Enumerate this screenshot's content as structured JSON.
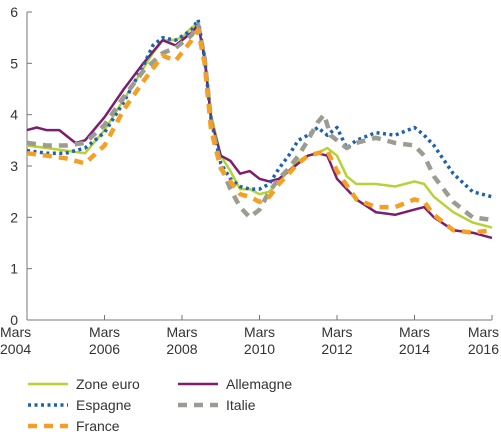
{
  "chart_data": {
    "type": "line",
    "title": "",
    "xlabel": "",
    "ylabel": "",
    "x_range": [
      "2004-03",
      "2016-03"
    ],
    "ylim": [
      0,
      6
    ],
    "y_ticks": [
      "0",
      "1",
      "2",
      "3",
      "4",
      "5",
      "6"
    ],
    "x_ticks": [
      {
        "month": "Mars",
        "year": "2004",
        "date": "2004-03"
      },
      {
        "month": "Mars",
        "year": "2006",
        "date": "2006-03"
      },
      {
        "month": "Mars",
        "year": "2008",
        "date": "2008-03"
      },
      {
        "month": "Mars",
        "year": "2010",
        "date": "2010-03"
      },
      {
        "month": "Mars",
        "year": "2012",
        "date": "2012-03"
      },
      {
        "month": "Mars",
        "year": "2014",
        "date": "2014-03"
      },
      {
        "month": "Mars",
        "year": "2016",
        "date": "2016-03"
      }
    ],
    "grid": "none",
    "legend_position": "bottom",
    "series": [
      {
        "name": "Zone euro",
        "color": "#b5d334",
        "style": "solid",
        "points": [
          [
            "2004-03",
            3.4
          ],
          [
            "2004-09",
            3.35
          ],
          [
            "2005-03",
            3.3
          ],
          [
            "2005-09",
            3.25
          ],
          [
            "2006-03",
            3.7
          ],
          [
            "2006-09",
            4.3
          ],
          [
            "2007-03",
            4.9
          ],
          [
            "2007-06",
            5.2
          ],
          [
            "2007-09",
            5.45
          ],
          [
            "2007-12",
            5.45
          ],
          [
            "2008-03",
            5.5
          ],
          [
            "2008-06",
            5.7
          ],
          [
            "2008-08",
            5.75
          ],
          [
            "2008-10",
            5.2
          ],
          [
            "2008-12",
            4.0
          ],
          [
            "2009-03",
            3.2
          ],
          [
            "2009-06",
            2.9
          ],
          [
            "2009-09",
            2.55
          ],
          [
            "2009-12",
            2.55
          ],
          [
            "2010-03",
            2.45
          ],
          [
            "2010-06",
            2.5
          ],
          [
            "2010-09",
            2.7
          ],
          [
            "2010-12",
            2.9
          ],
          [
            "2011-03",
            3.1
          ],
          [
            "2011-06",
            3.2
          ],
          [
            "2011-09",
            3.25
          ],
          [
            "2011-12",
            3.35
          ],
          [
            "2012-03",
            3.2
          ],
          [
            "2012-06",
            2.8
          ],
          [
            "2012-09",
            2.65
          ],
          [
            "2013-03",
            2.65
          ],
          [
            "2013-09",
            2.6
          ],
          [
            "2014-03",
            2.7
          ],
          [
            "2014-06",
            2.65
          ],
          [
            "2014-09",
            2.4
          ],
          [
            "2015-03",
            2.1
          ],
          [
            "2015-09",
            1.9
          ],
          [
            "2016-03",
            1.8
          ]
        ]
      },
      {
        "name": "Allemagne",
        "color": "#7b1e6e",
        "style": "solid",
        "points": [
          [
            "2004-03",
            3.7
          ],
          [
            "2004-06",
            3.75
          ],
          [
            "2004-09",
            3.7
          ],
          [
            "2005-01",
            3.7
          ],
          [
            "2005-06",
            3.45
          ],
          [
            "2005-09",
            3.5
          ],
          [
            "2006-03",
            3.95
          ],
          [
            "2006-09",
            4.5
          ],
          [
            "2007-03",
            5.0
          ],
          [
            "2007-09",
            5.45
          ],
          [
            "2008-01",
            5.35
          ],
          [
            "2008-06",
            5.6
          ],
          [
            "2008-08",
            5.75
          ],
          [
            "2008-10",
            5.1
          ],
          [
            "2008-12",
            3.9
          ],
          [
            "2009-03",
            3.2
          ],
          [
            "2009-06",
            3.1
          ],
          [
            "2009-09",
            2.85
          ],
          [
            "2009-12",
            2.9
          ],
          [
            "2010-03",
            2.75
          ],
          [
            "2010-06",
            2.7
          ],
          [
            "2010-09",
            2.75
          ],
          [
            "2010-12",
            2.9
          ],
          [
            "2011-03",
            3.05
          ],
          [
            "2011-06",
            3.2
          ],
          [
            "2011-09",
            3.25
          ],
          [
            "2011-12",
            3.2
          ],
          [
            "2012-03",
            2.75
          ],
          [
            "2012-09",
            2.35
          ],
          [
            "2013-03",
            2.1
          ],
          [
            "2013-09",
            2.05
          ],
          [
            "2014-03",
            2.15
          ],
          [
            "2014-06",
            2.2
          ],
          [
            "2014-09",
            2.0
          ],
          [
            "2015-03",
            1.75
          ],
          [
            "2015-09",
            1.7
          ],
          [
            "2016-03",
            1.6
          ]
        ]
      },
      {
        "name": "Espagne",
        "color": "#1e62ad",
        "style": "dotted",
        "points": [
          [
            "2004-03",
            3.3
          ],
          [
            "2004-09",
            3.25
          ],
          [
            "2005-03",
            3.25
          ],
          [
            "2005-09",
            3.35
          ],
          [
            "2006-03",
            3.65
          ],
          [
            "2006-09",
            4.25
          ],
          [
            "2007-03",
            4.95
          ],
          [
            "2007-06",
            5.35
          ],
          [
            "2007-09",
            5.5
          ],
          [
            "2008-01",
            5.45
          ],
          [
            "2008-06",
            5.65
          ],
          [
            "2008-08",
            5.85
          ],
          [
            "2008-10",
            5.1
          ],
          [
            "2008-12",
            3.9
          ],
          [
            "2009-03",
            3.05
          ],
          [
            "2009-06",
            2.75
          ],
          [
            "2009-09",
            2.6
          ],
          [
            "2009-12",
            2.55
          ],
          [
            "2010-03",
            2.55
          ],
          [
            "2010-06",
            2.65
          ],
          [
            "2010-09",
            2.95
          ],
          [
            "2010-12",
            3.2
          ],
          [
            "2011-03",
            3.5
          ],
          [
            "2011-06",
            3.6
          ],
          [
            "2011-09",
            3.75
          ],
          [
            "2011-12",
            3.6
          ],
          [
            "2012-03",
            3.75
          ],
          [
            "2012-06",
            3.35
          ],
          [
            "2012-09",
            3.5
          ],
          [
            "2013-03",
            3.65
          ],
          [
            "2013-09",
            3.6
          ],
          [
            "2014-03",
            3.75
          ],
          [
            "2014-06",
            3.6
          ],
          [
            "2014-09",
            3.4
          ],
          [
            "2015-03",
            2.85
          ],
          [
            "2015-09",
            2.5
          ],
          [
            "2016-03",
            2.4
          ]
        ]
      },
      {
        "name": "Italie",
        "color": "#9c9c92",
        "style": "dashed",
        "points": [
          [
            "2004-03",
            3.45
          ],
          [
            "2004-09",
            3.4
          ],
          [
            "2005-03",
            3.4
          ],
          [
            "2005-09",
            3.45
          ],
          [
            "2006-03",
            3.8
          ],
          [
            "2006-09",
            4.35
          ],
          [
            "2007-03",
            4.85
          ],
          [
            "2007-09",
            5.2
          ],
          [
            "2008-01",
            5.3
          ],
          [
            "2008-06",
            5.55
          ],
          [
            "2008-08",
            5.75
          ],
          [
            "2008-10",
            5.1
          ],
          [
            "2008-12",
            3.85
          ],
          [
            "2009-03",
            3.0
          ],
          [
            "2009-06",
            2.55
          ],
          [
            "2009-09",
            2.2
          ],
          [
            "2009-12",
            2.0
          ],
          [
            "2010-03",
            2.15
          ],
          [
            "2010-06",
            2.5
          ],
          [
            "2010-09",
            2.75
          ],
          [
            "2010-12",
            2.95
          ],
          [
            "2011-03",
            3.2
          ],
          [
            "2011-06",
            3.5
          ],
          [
            "2011-09",
            3.85
          ],
          [
            "2011-11",
            4.0
          ],
          [
            "2012-01",
            3.6
          ],
          [
            "2012-06",
            3.35
          ],
          [
            "2012-09",
            3.45
          ],
          [
            "2013-03",
            3.55
          ],
          [
            "2013-09",
            3.45
          ],
          [
            "2014-03",
            3.4
          ],
          [
            "2014-06",
            3.2
          ],
          [
            "2014-09",
            2.8
          ],
          [
            "2015-03",
            2.3
          ],
          [
            "2015-09",
            2.0
          ],
          [
            "2016-03",
            1.95
          ]
        ]
      },
      {
        "name": "France",
        "color": "#f4a024",
        "style": "dashed",
        "points": [
          [
            "2004-03",
            3.25
          ],
          [
            "2004-09",
            3.2
          ],
          [
            "2005-03",
            3.15
          ],
          [
            "2005-09",
            3.05
          ],
          [
            "2006-03",
            3.4
          ],
          [
            "2006-09",
            4.1
          ],
          [
            "2007-03",
            4.65
          ],
          [
            "2007-09",
            5.15
          ],
          [
            "2008-01",
            5.05
          ],
          [
            "2008-06",
            5.45
          ],
          [
            "2008-08",
            5.65
          ],
          [
            "2008-10",
            5.0
          ],
          [
            "2008-12",
            3.7
          ],
          [
            "2009-03",
            2.95
          ],
          [
            "2009-06",
            2.7
          ],
          [
            "2009-09",
            2.45
          ],
          [
            "2009-12",
            2.4
          ],
          [
            "2010-03",
            2.3
          ],
          [
            "2010-06",
            2.4
          ],
          [
            "2010-09",
            2.65
          ],
          [
            "2010-12",
            2.85
          ],
          [
            "2011-03",
            3.05
          ],
          [
            "2011-06",
            3.2
          ],
          [
            "2011-09",
            3.25
          ],
          [
            "2011-12",
            3.3
          ],
          [
            "2012-03",
            2.9
          ],
          [
            "2012-09",
            2.35
          ],
          [
            "2013-03",
            2.2
          ],
          [
            "2013-09",
            2.2
          ],
          [
            "2014-03",
            2.35
          ],
          [
            "2014-06",
            2.3
          ],
          [
            "2014-09",
            2.05
          ],
          [
            "2015-03",
            1.75
          ],
          [
            "2015-09",
            1.7
          ],
          [
            "2016-03",
            1.75
          ]
        ]
      }
    ],
    "legend_rows": [
      [
        "Zone euro",
        "Allemagne"
      ],
      [
        "Espagne",
        "Italie"
      ],
      [
        "France"
      ]
    ]
  }
}
